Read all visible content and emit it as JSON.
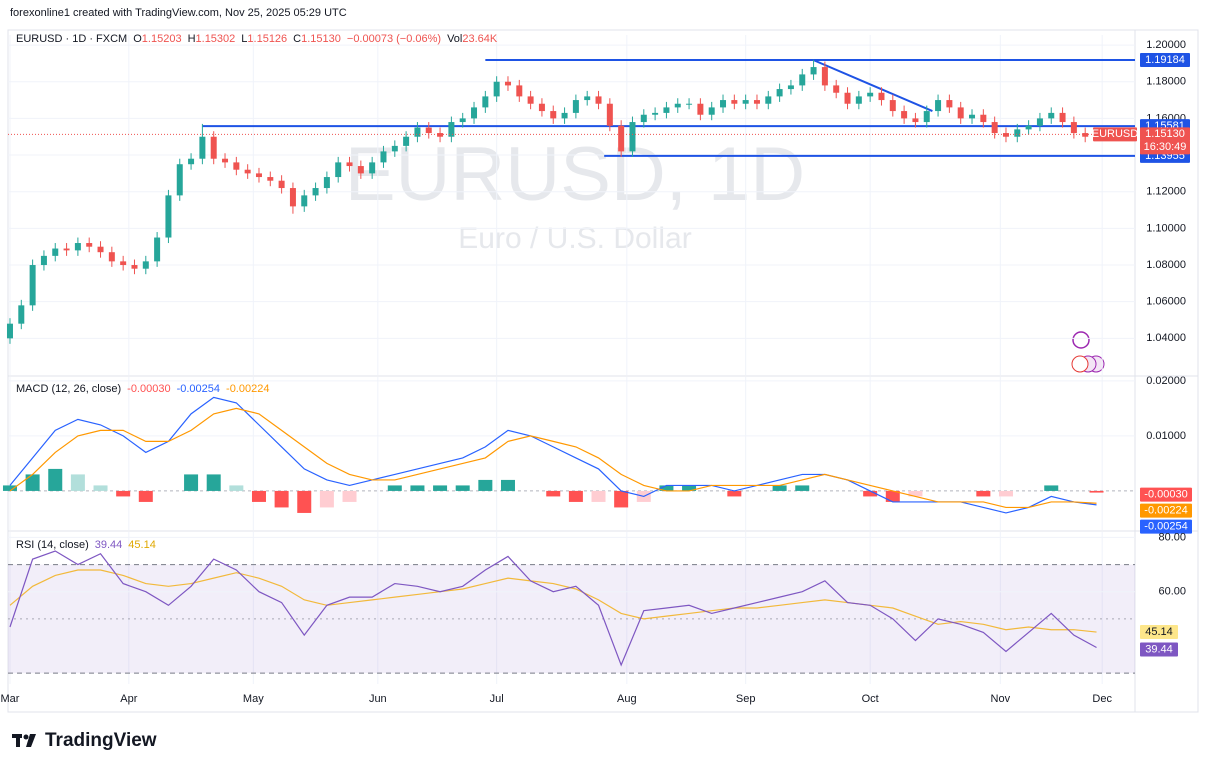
{
  "page_header": "forexonline1 created with TradingView.com, Nov 25, 2025 05:29 UTC",
  "brand": "TradingView",
  "chart_data": [
    {
      "type": "candlestick",
      "title": "EURUSD, 1D",
      "subtitle": "Euro / U.S. Dollar",
      "symbol": "EURUSD · 1D · FXCM",
      "ohlc_keys": [
        "O",
        "H",
        "L",
        "C"
      ],
      "close_label": "1.15130",
      "change": "−0.00073 (−0.06%)",
      "volume_key": "Vol",
      "volume": {
        "value": 23640,
        "label": "23.64K"
      },
      "ticker": "EURUSD",
      "countdown": "16:30:49",
      "up_color": "#26a69a",
      "down_color": "#ef5350",
      "xlim": [
        -0.35,
        198.8
      ],
      "xticks": [
        {
          "value": 0,
          "label": "Mar"
        },
        {
          "value": 21,
          "label": "Apr"
        },
        {
          "value": 43,
          "label": "May"
        },
        {
          "value": 65,
          "label": "Jun"
        },
        {
          "value": 86,
          "label": "Jul"
        },
        {
          "value": 109,
          "label": "Aug"
        },
        {
          "value": 130,
          "label": "Sep"
        },
        {
          "value": 152,
          "label": "Oct"
        },
        {
          "value": 175,
          "label": "Nov"
        },
        {
          "value": 193,
          "label": "Dec"
        }
      ],
      "ylim": [
        1.02,
        1.2055
      ],
      "yticks": [
        {
          "value": 1.2,
          "label": "1.20000"
        },
        {
          "value": 1.18,
          "label": "1.18000"
        },
        {
          "value": 1.16,
          "label": "1.16000"
        },
        {
          "value": 1.14,
          "label": "1.14000"
        },
        {
          "value": 1.12,
          "label": "1.12000"
        },
        {
          "value": 1.1,
          "label": "1.10000"
        },
        {
          "value": 1.08,
          "label": "1.08000"
        },
        {
          "value": 1.06,
          "label": "1.06000"
        },
        {
          "value": 1.04,
          "label": "1.04000"
        }
      ],
      "hline_color": "#1e53e5",
      "hlines": [
        {
          "value": 1.19184,
          "from": 84
        },
        {
          "value": 1.15581,
          "from": 34
        },
        {
          "value": 1.13955,
          "from": 105
        }
      ],
      "trendline": {
        "x": [
          142,
          163
        ],
        "y": [
          1.1918,
          1.164
        ]
      },
      "x": [
        0,
        2,
        4,
        6,
        8,
        10,
        12,
        14,
        16,
        18,
        20,
        22,
        24,
        26,
        28,
        30,
        32,
        34,
        36,
        38,
        40,
        42,
        44,
        46,
        48,
        50,
        52,
        54,
        56,
        58,
        60,
        62,
        64,
        66,
        68,
        70,
        72,
        74,
        76,
        78,
        80,
        82,
        84,
        86,
        88,
        90,
        92,
        94,
        96,
        98,
        100,
        102,
        104,
        106,
        108,
        110,
        112,
        114,
        116,
        118,
        120,
        122,
        124,
        126,
        128,
        130,
        132,
        134,
        136,
        138,
        140,
        142,
        144,
        146,
        148,
        150,
        152,
        154,
        156,
        158,
        160,
        162,
        164,
        166,
        168,
        170,
        172,
        174,
        176,
        178,
        180,
        182,
        184,
        186,
        188,
        190,
        192
      ],
      "ohlc": [
        [
          1.04,
          1.051,
          1.037,
          1.048
        ],
        [
          1.048,
          1.061,
          1.045,
          1.058
        ],
        [
          1.058,
          1.083,
          1.055,
          1.08
        ],
        [
          1.08,
          1.088,
          1.077,
          1.085
        ],
        [
          1.085,
          1.092,
          1.082,
          1.089
        ],
        [
          1.089,
          1.092,
          1.085,
          1.088
        ],
        [
          1.088,
          1.095,
          1.085,
          1.092
        ],
        [
          1.092,
          1.095,
          1.087,
          1.09
        ],
        [
          1.09,
          1.093,
          1.084,
          1.087
        ],
        [
          1.087,
          1.09,
          1.079,
          1.082
        ],
        [
          1.082,
          1.085,
          1.077,
          1.08
        ],
        [
          1.08,
          1.083,
          1.075,
          1.078
        ],
        [
          1.078,
          1.085,
          1.075,
          1.082
        ],
        [
          1.082,
          1.098,
          1.079,
          1.095
        ],
        [
          1.095,
          1.121,
          1.092,
          1.118
        ],
        [
          1.118,
          1.138,
          1.115,
          1.135
        ],
        [
          1.135,
          1.141,
          1.132,
          1.138
        ],
        [
          1.138,
          1.157,
          1.135,
          1.15
        ],
        [
          1.15,
          1.153,
          1.135,
          1.138
        ],
        [
          1.138,
          1.141,
          1.133,
          1.136
        ],
        [
          1.136,
          1.139,
          1.129,
          1.132
        ],
        [
          1.132,
          1.135,
          1.127,
          1.13
        ],
        [
          1.13,
          1.133,
          1.125,
          1.128
        ],
        [
          1.128,
          1.131,
          1.123,
          1.126
        ],
        [
          1.126,
          1.129,
          1.119,
          1.122
        ],
        [
          1.122,
          1.125,
          1.108,
          1.112
        ],
        [
          1.112,
          1.121,
          1.109,
          1.118
        ],
        [
          1.118,
          1.125,
          1.115,
          1.122
        ],
        [
          1.122,
          1.131,
          1.119,
          1.128
        ],
        [
          1.128,
          1.139,
          1.125,
          1.136
        ],
        [
          1.136,
          1.139,
          1.131,
          1.134
        ],
        [
          1.134,
          1.137,
          1.127,
          1.13
        ],
        [
          1.13,
          1.139,
          1.127,
          1.136
        ],
        [
          1.136,
          1.145,
          1.133,
          1.142
        ],
        [
          1.142,
          1.148,
          1.139,
          1.145
        ],
        [
          1.145,
          1.153,
          1.142,
          1.15
        ],
        [
          1.15,
          1.158,
          1.147,
          1.155
        ],
        [
          1.155,
          1.158,
          1.149,
          1.152
        ],
        [
          1.152,
          1.155,
          1.147,
          1.15
        ],
        [
          1.15,
          1.161,
          1.147,
          1.158
        ],
        [
          1.158,
          1.163,
          1.155,
          1.16
        ],
        [
          1.16,
          1.169,
          1.157,
          1.166
        ],
        [
          1.166,
          1.175,
          1.163,
          1.172
        ],
        [
          1.172,
          1.183,
          1.169,
          1.18
        ],
        [
          1.18,
          1.183,
          1.175,
          1.178
        ],
        [
          1.178,
          1.181,
          1.169,
          1.172
        ],
        [
          1.172,
          1.175,
          1.165,
          1.168
        ],
        [
          1.168,
          1.171,
          1.161,
          1.164
        ],
        [
          1.164,
          1.167,
          1.157,
          1.16
        ],
        [
          1.16,
          1.166,
          1.157,
          1.163
        ],
        [
          1.163,
          1.173,
          1.16,
          1.17
        ],
        [
          1.17,
          1.175,
          1.167,
          1.172
        ],
        [
          1.172,
          1.175,
          1.165,
          1.168
        ],
        [
          1.168,
          1.171,
          1.153,
          1.156
        ],
        [
          1.156,
          1.159,
          1.139,
          1.142
        ],
        [
          1.142,
          1.161,
          1.139,
          1.158
        ],
        [
          1.158,
          1.165,
          1.155,
          1.162
        ],
        [
          1.162,
          1.166,
          1.159,
          1.163
        ],
        [
          1.163,
          1.169,
          1.16,
          1.166
        ],
        [
          1.166,
          1.171,
          1.163,
          1.168
        ],
        [
          1.168,
          1.171,
          1.165,
          1.168
        ],
        [
          1.168,
          1.171,
          1.159,
          1.162
        ],
        [
          1.162,
          1.169,
          1.159,
          1.166
        ],
        [
          1.166,
          1.173,
          1.163,
          1.17
        ],
        [
          1.17,
          1.173,
          1.165,
          1.168
        ],
        [
          1.168,
          1.173,
          1.165,
          1.17
        ],
        [
          1.17,
          1.173,
          1.165,
          1.168
        ],
        [
          1.168,
          1.175,
          1.165,
          1.172
        ],
        [
          1.172,
          1.179,
          1.169,
          1.176
        ],
        [
          1.176,
          1.181,
          1.173,
          1.178
        ],
        [
          1.178,
          1.187,
          1.175,
          1.184
        ],
        [
          1.184,
          1.192,
          1.181,
          1.188
        ],
        [
          1.188,
          1.191,
          1.175,
          1.178
        ],
        [
          1.178,
          1.181,
          1.171,
          1.174
        ],
        [
          1.174,
          1.177,
          1.165,
          1.168
        ],
        [
          1.168,
          1.175,
          1.165,
          1.172
        ],
        [
          1.172,
          1.177,
          1.169,
          1.174
        ],
        [
          1.174,
          1.177,
          1.167,
          1.17
        ],
        [
          1.17,
          1.173,
          1.161,
          1.164
        ],
        [
          1.164,
          1.167,
          1.157,
          1.16
        ],
        [
          1.16,
          1.163,
          1.155,
          1.158
        ],
        [
          1.158,
          1.167,
          1.155,
          1.164
        ],
        [
          1.164,
          1.173,
          1.161,
          1.17
        ],
        [
          1.17,
          1.173,
          1.163,
          1.166
        ],
        [
          1.166,
          1.169,
          1.157,
          1.16
        ],
        [
          1.16,
          1.165,
          1.157,
          1.162
        ],
        [
          1.162,
          1.165,
          1.155,
          1.158
        ],
        [
          1.158,
          1.161,
          1.149,
          1.152
        ],
        [
          1.152,
          1.155,
          1.147,
          1.15
        ],
        [
          1.15,
          1.157,
          1.147,
          1.154
        ],
        [
          1.154,
          1.159,
          1.151,
          1.156
        ],
        [
          1.156,
          1.163,
          1.153,
          1.16
        ],
        [
          1.16,
          1.166,
          1.157,
          1.163
        ],
        [
          1.163,
          1.166,
          1.155,
          1.158
        ],
        [
          1.158,
          1.161,
          1.149,
          1.152
        ],
        [
          1.152,
          1.155,
          1.147,
          1.15
        ],
        [
          1.15203,
          1.15302,
          1.15126,
          1.1513
        ]
      ]
    },
    {
      "type": "macd",
      "title": "MACD (12, 26, close)",
      "ylim": [
        -0.0071,
        0.0207
      ],
      "yticks": [
        {
          "value": 0.02,
          "label": "0.02000"
        },
        {
          "value": 0.01,
          "label": "0.01000"
        }
      ],
      "x": [
        0,
        4,
        8,
        12,
        16,
        20,
        24,
        28,
        32,
        36,
        40,
        44,
        48,
        52,
        56,
        60,
        64,
        68,
        72,
        76,
        80,
        84,
        88,
        92,
        96,
        100,
        104,
        108,
        112,
        116,
        120,
        124,
        128,
        132,
        136,
        140,
        144,
        148,
        152,
        156,
        160,
        164,
        168,
        172,
        176,
        180,
        184,
        188,
        192
      ],
      "histogram": {
        "colors": [
          "#26a69a",
          "#b2dfdb",
          "#ff5252",
          "#ffcdd2"
        ],
        "value_label": "-0.00030",
        "values": [
          0.001,
          0.003,
          0.004,
          0.003,
          0.001,
          -0.001,
          -0.002,
          0,
          0.003,
          0.003,
          0.001,
          -0.002,
          -0.003,
          -0.004,
          -0.003,
          -0.002,
          0,
          0.001,
          0.001,
          0.001,
          0.001,
          0.002,
          0.002,
          0,
          -0.001,
          -0.002,
          -0.002,
          -0.003,
          -0.002,
          0.001,
          0.001,
          0,
          -0.001,
          0,
          0.001,
          0.001,
          0,
          0,
          -0.001,
          -0.002,
          -0.001,
          0,
          0,
          -0.001,
          -0.001,
          0,
          0.001,
          0,
          -0.0003
        ]
      },
      "macd": {
        "color": "#2962ff",
        "values": [
          0.001,
          0.006,
          0.011,
          0.013,
          0.012,
          0.01,
          0.007,
          0.009,
          0.014,
          0.017,
          0.016,
          0.012,
          0.008,
          0.004,
          0.002,
          0.001,
          0.002,
          0.003,
          0.004,
          0.005,
          0.006,
          0.008,
          0.011,
          0.01,
          0.008,
          0.006,
          0.004,
          0.0,
          -0.001,
          0.001,
          0.001,
          0.001,
          0.0,
          0.001,
          0.002,
          0.003,
          0.003,
          0.002,
          0.0,
          -0.002,
          -0.002,
          -0.002,
          -0.002,
          -0.003,
          -0.004,
          -0.003,
          -0.001,
          -0.002,
          -0.00254
        ]
      },
      "signal": {
        "color": "#ff9800",
        "values": [
          0.0,
          0.003,
          0.007,
          0.01,
          0.011,
          0.011,
          0.009,
          0.009,
          0.011,
          0.014,
          0.015,
          0.014,
          0.011,
          0.008,
          0.005,
          0.003,
          0.002,
          0.002,
          0.003,
          0.004,
          0.005,
          0.006,
          0.009,
          0.01,
          0.009,
          0.008,
          0.006,
          0.003,
          0.001,
          0.0,
          0.0,
          0.001,
          0.001,
          0.001,
          0.001,
          0.002,
          0.003,
          0.002,
          0.001,
          0.0,
          -0.001,
          -0.002,
          -0.002,
          -0.002,
          -0.003,
          -0.003,
          -0.002,
          -0.002,
          -0.00224
        ]
      }
    },
    {
      "type": "line",
      "title": "RSI (14, close)",
      "ylim": [
        26,
        82
      ],
      "yticks": [
        {
          "value": 80,
          "label": "80.00"
        },
        {
          "value": 60,
          "label": "60.00"
        }
      ],
      "bands": [
        30,
        70
      ],
      "midline": 50,
      "band_color": "#7e57c2",
      "x": [
        0,
        4,
        8,
        12,
        16,
        20,
        24,
        28,
        32,
        36,
        40,
        44,
        48,
        52,
        56,
        60,
        64,
        68,
        72,
        76,
        80,
        84,
        88,
        92,
        96,
        100,
        104,
        108,
        112,
        116,
        120,
        124,
        128,
        132,
        136,
        140,
        144,
        148,
        152,
        156,
        160,
        164,
        168,
        172,
        176,
        180,
        184,
        188,
        192
      ],
      "rsi": {
        "color": "#7e57c2",
        "values": [
          47,
          72,
          75,
          70,
          74,
          63,
          60,
          55,
          62,
          72,
          68,
          60,
          56,
          44,
          55,
          58,
          58,
          63,
          62,
          60,
          62,
          68,
          73,
          64,
          60,
          62,
          55,
          33,
          53,
          54,
          55,
          52,
          54,
          56,
          58,
          60,
          64,
          56,
          55,
          50,
          42,
          50,
          48,
          45,
          38,
          45,
          52,
          44,
          39.44
        ]
      },
      "ma": {
        "color": "#f2b93b",
        "values": [
          55,
          62,
          66,
          68,
          68,
          66,
          63,
          62,
          63,
          65,
          67,
          65,
          62,
          57,
          55,
          56,
          57,
          58,
          59,
          60,
          61,
          63,
          65,
          64,
          63,
          61,
          57,
          52,
          50,
          51,
          52,
          53,
          54,
          54,
          55,
          56,
          57,
          56,
          55,
          54,
          51,
          48,
          49,
          48,
          46,
          47,
          46,
          46,
          45.14
        ]
      }
    }
  ]
}
